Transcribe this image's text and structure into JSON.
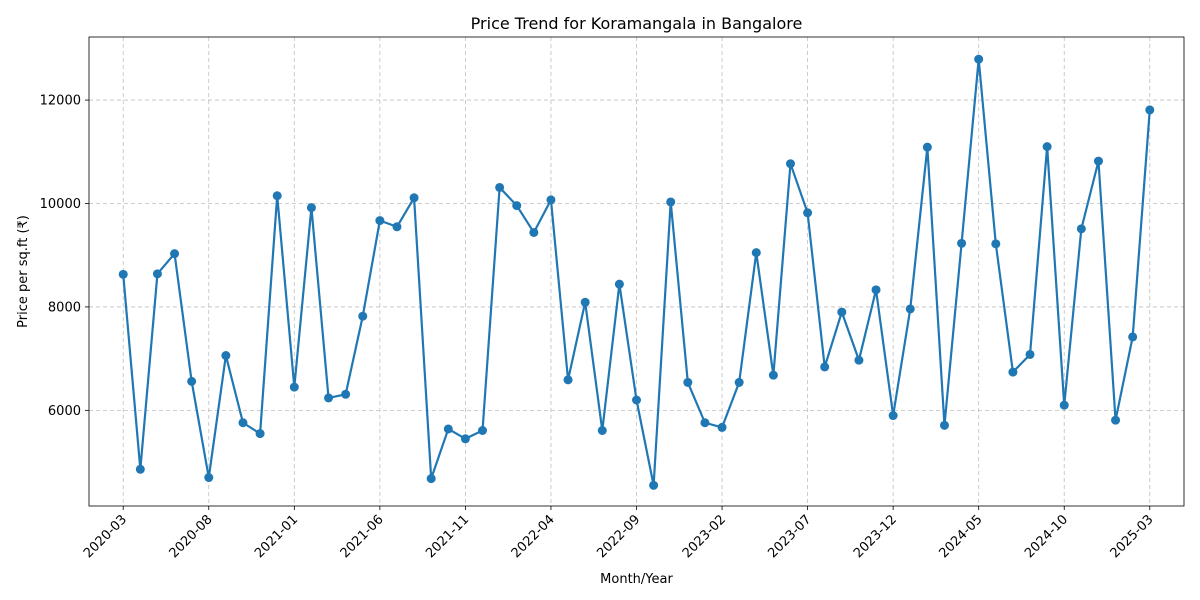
{
  "chart_data": {
    "type": "line",
    "title": "Price Trend for Koramangala in Bangalore",
    "xlabel": "Month/Year",
    "ylabel": "Price per sq.ft (₹)",
    "x_range": [
      "2020-03-01",
      "2025-03-01"
    ],
    "xlim": [
      "2020-01-01",
      "2025-05-01"
    ],
    "ylim": [
      4150,
      13220
    ],
    "x_ticks": [
      "2020-03",
      "2020-08",
      "2021-01",
      "2021-06",
      "2021-11",
      "2022-04",
      "2022-09",
      "2023-02",
      "2023-07",
      "2023-12",
      "2024-05",
      "2024-10",
      "2025-03"
    ],
    "y_ticks": [
      6000,
      8000,
      10000,
      12000
    ],
    "y_tick_labels": [
      "6000",
      "8000",
      "10000",
      "12000"
    ],
    "grid": true,
    "legend": "none",
    "marker": "circle",
    "series": [
      {
        "color": "#1f77b4",
        "values": [
          8630,
          4860,
          8640,
          9030,
          6560,
          4700,
          7060,
          5760,
          5550,
          10150,
          6450,
          9920,
          6240,
          6310,
          7820,
          9670,
          9550,
          10110,
          4680,
          5640,
          5450,
          5610,
          10310,
          9960,
          9440,
          10070,
          6590,
          8090,
          5610,
          8440,
          6200,
          4550,
          10030,
          6540,
          5760,
          5670,
          6540,
          9050,
          6680,
          10770,
          9820,
          6840,
          7900,
          6970,
          8330,
          5900,
          7960,
          11090,
          5710,
          9230,
          12790,
          9220,
          6740,
          7080,
          11100,
          6100,
          9510,
          10820,
          5810,
          7420,
          11810
        ]
      }
    ]
  }
}
